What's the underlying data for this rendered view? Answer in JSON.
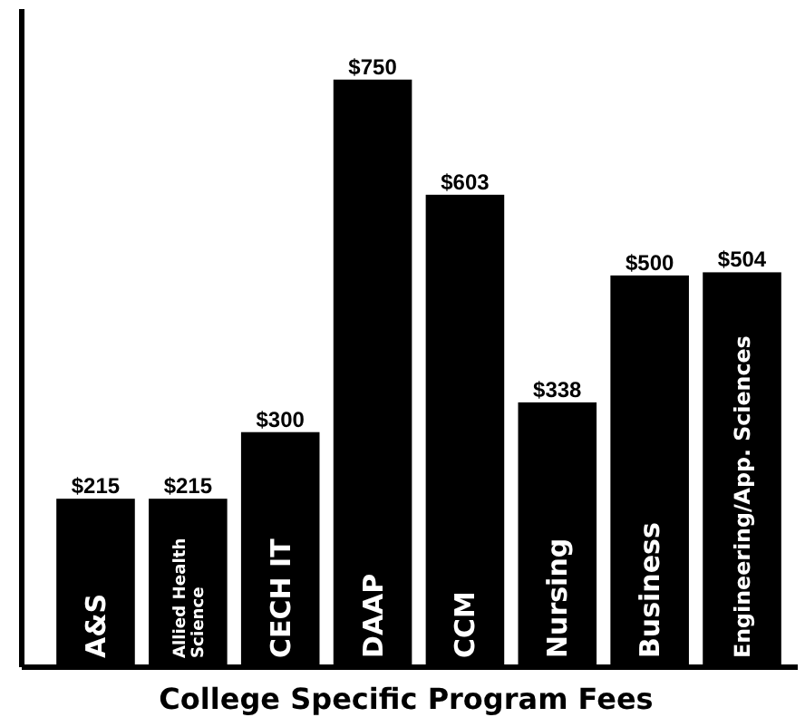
{
  "chart_data": {
    "type": "bar",
    "title": "College Specific Program Fees",
    "categories": [
      "A&S",
      "Allied Health Science",
      "CECH IT",
      "DAAP",
      "CCM",
      "Nursing",
      "Business",
      "Engineering/App. Sciences"
    ],
    "values": [
      215,
      215,
      300,
      750,
      603,
      338,
      500,
      504
    ],
    "value_labels": [
      "$215",
      "$215",
      "$300",
      "$750",
      "$603",
      "$338",
      "$500",
      "$504"
    ],
    "color": "#000000"
  }
}
